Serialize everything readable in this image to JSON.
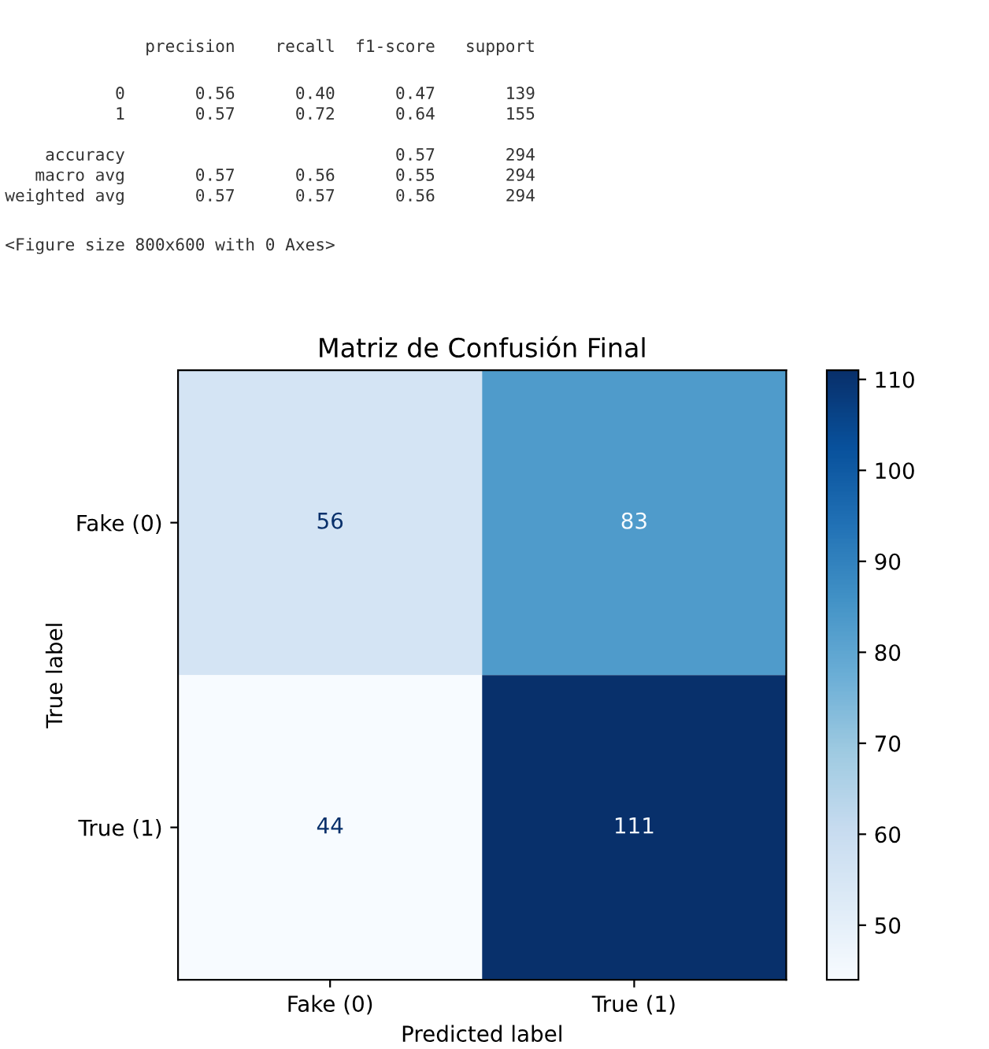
{
  "chart_data": [
    {
      "type": "other",
      "annotations": [
        "              precision    recall  f1-score   support",
        "           0       0.56      0.40      0.47       139",
        "           1       0.57      0.72      0.64       155",
        "    accuracy                           0.57       294",
        "   macro avg       0.57      0.56      0.55       294",
        "weighted avg       0.57      0.57      0.56       294",
        "<Figure size 800x600 with 0 Axes>"
      ]
    },
    {
      "type": "heatmap",
      "title": "Matriz de Confusión Final",
      "xlabel": "Predicted label",
      "ylabel": "True label",
      "categories": [
        "Fake (0)",
        "True (1)"
      ],
      "y_categories": [
        "Fake (0)",
        "True (1)"
      ],
      "cells": [
        [
          56,
          83
        ],
        [
          44,
          111
        ]
      ],
      "data_labels": true,
      "clim": [
        44,
        111
      ],
      "cticks": [
        50,
        60,
        70,
        80,
        90,
        100,
        110
      ]
    }
  ]
}
